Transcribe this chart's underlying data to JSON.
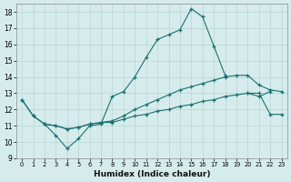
{
  "xlabel": "Humidex (Indice chaleur)",
  "background_color": "#d6ecec",
  "grid_color": "#b8d4d4",
  "line_color": "#1a7070",
  "xlim": [
    -0.5,
    23.5
  ],
  "ylim": [
    9,
    18.5
  ],
  "yticks": [
    9,
    10,
    11,
    12,
    13,
    14,
    15,
    16,
    17,
    18
  ],
  "xticks": [
    0,
    1,
    2,
    3,
    4,
    5,
    6,
    7,
    8,
    9,
    10,
    11,
    12,
    13,
    14,
    15,
    16,
    17,
    18,
    19,
    20,
    21,
    22,
    23
  ],
  "line1_x": [
    0,
    1,
    2,
    3,
    4,
    5,
    6,
    7,
    8,
    9,
    10,
    11,
    12,
    13,
    14,
    15,
    16,
    17,
    18,
    20,
    21,
    22
  ],
  "line1_y": [
    12.6,
    11.6,
    11.1,
    10.4,
    9.6,
    10.2,
    11.0,
    11.1,
    12.8,
    13.1,
    14.0,
    15.2,
    16.3,
    16.6,
    16.9,
    18.2,
    17.7,
    15.9,
    14.1,
    13.0,
    12.8,
    13.1
  ],
  "line2_x": [
    0,
    1,
    2,
    3,
    4,
    5,
    6,
    7,
    8,
    9,
    10,
    11,
    12,
    13,
    14,
    15,
    16,
    17,
    18,
    19,
    20,
    21,
    22,
    23
  ],
  "line2_y": [
    12.6,
    11.6,
    11.1,
    11.0,
    10.8,
    10.9,
    11.1,
    11.2,
    11.3,
    11.6,
    12.0,
    12.3,
    12.6,
    12.9,
    13.2,
    13.4,
    13.6,
    13.8,
    14.0,
    14.1,
    14.1,
    13.5,
    13.2,
    13.1
  ],
  "line3_x": [
    2,
    3,
    4,
    5,
    6,
    7,
    8,
    9,
    10,
    11,
    12,
    13,
    14,
    15,
    16,
    17,
    18,
    19,
    20,
    21,
    22,
    23
  ],
  "line3_y": [
    11.1,
    11.0,
    10.8,
    10.9,
    11.1,
    11.2,
    11.2,
    11.4,
    11.6,
    11.7,
    11.9,
    12.0,
    12.2,
    12.3,
    12.5,
    12.6,
    12.8,
    12.9,
    13.0,
    13.0,
    11.7,
    11.7
  ]
}
